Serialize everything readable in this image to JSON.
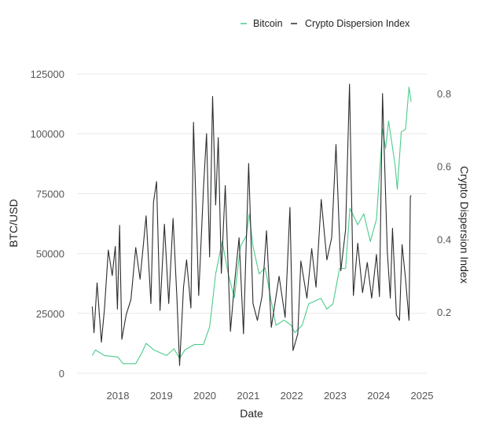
{
  "chart_data": {
    "type": "line",
    "title": "",
    "xlabel": "Date",
    "ylabel_left": "BTC/USD",
    "ylabel_right": "Crypto Dispersion Index",
    "x_ticks": [
      "2018",
      "2019",
      "2020",
      "2021",
      "2022",
      "2023",
      "2024",
      "2025"
    ],
    "y_left_ticks": [
      "0",
      "25000",
      "50000",
      "75000",
      "100000",
      "125000"
    ],
    "y_right_ticks": [
      "0.2",
      "0.4",
      "0.6",
      "0.8"
    ],
    "xlim": [
      2017.0,
      2025.0
    ],
    "ylim_left": [
      0,
      125000
    ],
    "ylim_right": [
      0.032,
      0.854
    ],
    "grid": "horizontal",
    "legend_position": "top-right",
    "colors": {
      "bitcoin": "#4ccb8c",
      "dispersion": "#2a2c2e",
      "grid": "#e8e8e8"
    },
    "series": [
      {
        "name": "Bitcoin",
        "axis": "left",
        "x": [
          2017.41,
          2017.48,
          2017.69,
          2018.0,
          2018.12,
          2018.41,
          2018.55,
          2018.65,
          2018.83,
          2019.12,
          2019.29,
          2019.42,
          2019.54,
          2019.76,
          2019.97,
          2020.11,
          2020.18,
          2020.25,
          2020.4,
          2020.54,
          2020.68,
          2020.82,
          2020.96,
          2021.02,
          2021.11,
          2021.25,
          2021.39,
          2021.53,
          2021.64,
          2021.82,
          2021.99,
          2022.07,
          2022.24,
          2022.39,
          2022.67,
          2022.81,
          2022.95,
          2023.1,
          2023.24,
          2023.34,
          2023.52,
          2023.66,
          2023.81,
          2023.95,
          2024.09,
          2024.16,
          2024.23,
          2024.38,
          2024.43,
          2024.52,
          2024.62,
          2024.7,
          2024.75
        ],
        "y": [
          7400,
          9700,
          7400,
          6800,
          4000,
          4000,
          8500,
          12500,
          9700,
          7400,
          10200,
          6200,
          9700,
          12000,
          12000,
          19400,
          30000,
          41500,
          55000,
          41500,
          31500,
          53000,
          57500,
          66600,
          53000,
          41500,
          44000,
          30000,
          20000,
          22200,
          20000,
          17000,
          20000,
          29000,
          31300,
          26800,
          29000,
          43800,
          43800,
          68900,
          62000,
          66600,
          55000,
          64300,
          101900,
          93900,
          105300,
          87000,
          76800,
          100700,
          101900,
          119500,
          113300
        ]
      },
      {
        "name": "Crypto Dispersion Index",
        "axis": "right",
        "x": [
          2017.41,
          2017.45,
          2017.52,
          2017.62,
          2017.69,
          2017.78,
          2017.87,
          2017.94,
          2017.99,
          2018.04,
          2018.09,
          2018.19,
          2018.3,
          2018.41,
          2018.51,
          2018.65,
          2018.76,
          2018.82,
          2018.89,
          2018.97,
          2019.07,
          2019.17,
          2019.27,
          2019.36,
          2019.42,
          2019.51,
          2019.58,
          2019.68,
          2019.74,
          2019.86,
          2019.97,
          2020.04,
          2020.11,
          2020.18,
          2020.25,
          2020.31,
          2020.38,
          2020.47,
          2020.59,
          2020.68,
          2020.79,
          2020.89,
          2021.01,
          2021.11,
          2021.21,
          2021.32,
          2021.42,
          2021.53,
          2021.71,
          2021.85,
          2021.96,
          2022.03,
          2022.14,
          2022.21,
          2022.35,
          2022.46,
          2022.56,
          2022.68,
          2022.81,
          2022.92,
          2023.02,
          2023.13,
          2023.24,
          2023.33,
          2023.42,
          2023.52,
          2023.63,
          2023.74,
          2023.84,
          2023.95,
          2024.02,
          2024.09,
          2024.2,
          2024.27,
          2024.32,
          2024.41,
          2024.48,
          2024.54,
          2024.62,
          2024.7,
          2024.73,
          2024.75
        ],
        "y": [
          0.215,
          0.143,
          0.28,
          0.117,
          0.208,
          0.37,
          0.3,
          0.38,
          0.208,
          0.438,
          0.125,
          0.192,
          0.234,
          0.377,
          0.29,
          0.464,
          0.223,
          0.502,
          0.558,
          0.204,
          0.441,
          0.223,
          0.457,
          0.234,
          0.053,
          0.268,
          0.343,
          0.211,
          0.721,
          0.245,
          0.54,
          0.69,
          0.351,
          0.792,
          0.494,
          0.679,
          0.306,
          0.547,
          0.147,
          0.275,
          0.404,
          0.14,
          0.608,
          0.223,
          0.177,
          0.245,
          0.423,
          0.158,
          0.298,
          0.185,
          0.487,
          0.094,
          0.14,
          0.34,
          0.238,
          0.374,
          0.268,
          0.509,
          0.343,
          0.404,
          0.66,
          0.313,
          0.426,
          0.826,
          0.245,
          0.389,
          0.253,
          0.336,
          0.238,
          0.358,
          0.242,
          0.8,
          0.366,
          0.238,
          0.43,
          0.192,
          0.177,
          0.385,
          0.29,
          0.177,
          0.517,
          0.52
        ]
      }
    ]
  }
}
